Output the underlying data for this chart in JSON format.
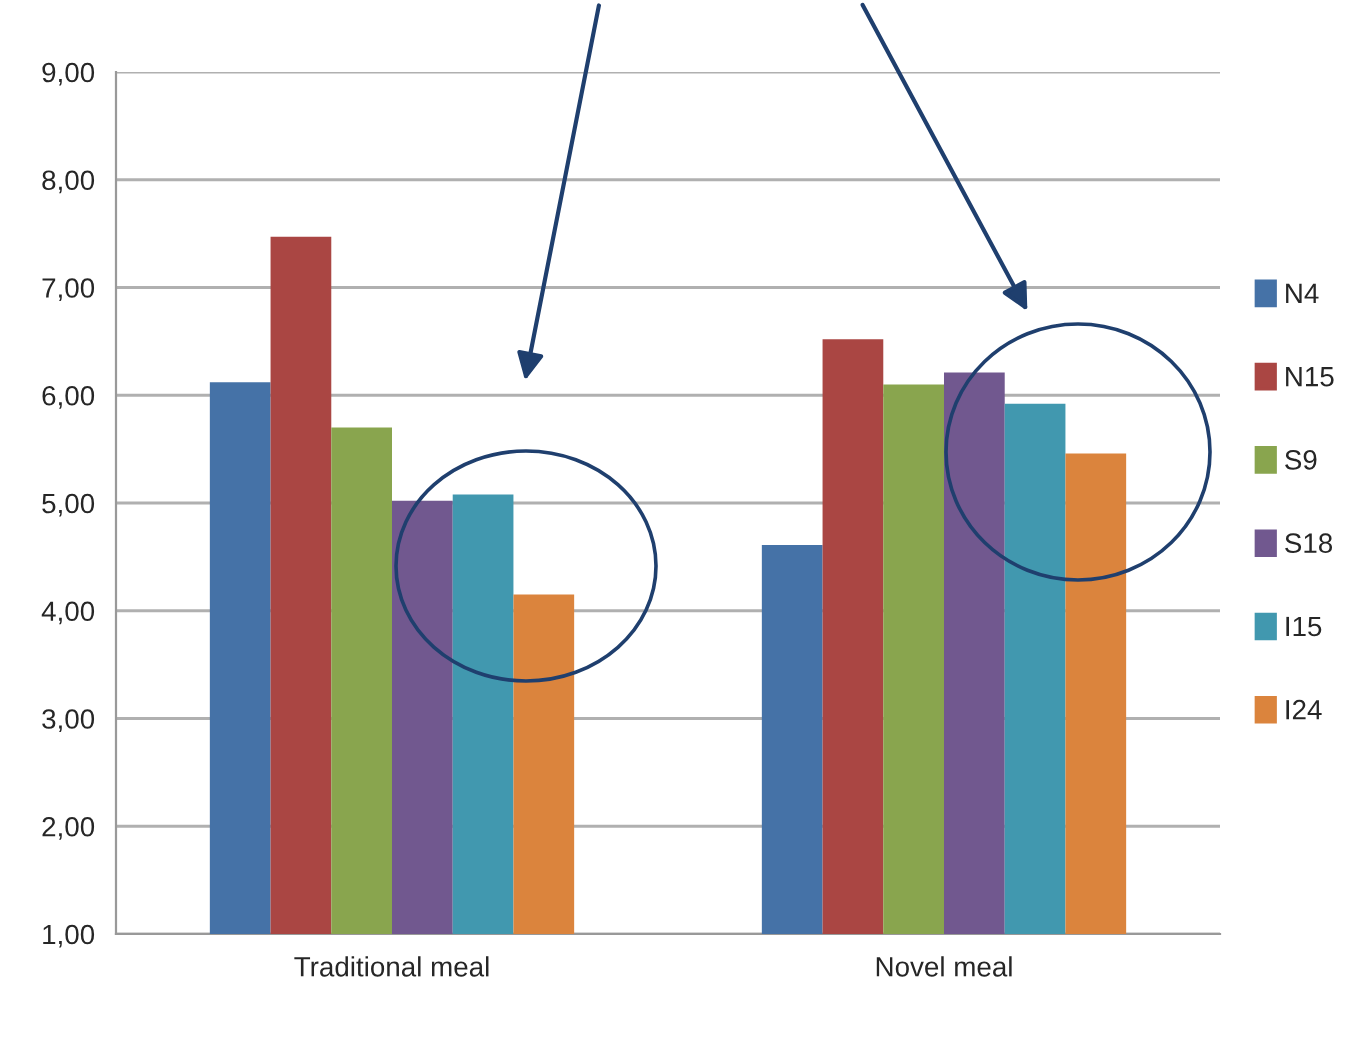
{
  "chart_data": {
    "type": "bar",
    "categories": [
      "Traditional meal",
      "Novel meal"
    ],
    "series": [
      {
        "name": "N4",
        "color": "#4572a7",
        "values": [
          6.12,
          4.61
        ]
      },
      {
        "name": "N15",
        "color": "#aa4643",
        "values": [
          7.47,
          6.52
        ]
      },
      {
        "name": "S9",
        "color": "#89a54e",
        "values": [
          5.7,
          6.1
        ]
      },
      {
        "name": "S18",
        "color": "#71588f",
        "values": [
          5.02,
          6.21
        ]
      },
      {
        "name": "I15",
        "color": "#4198af",
        "values": [
          5.08,
          5.92
        ]
      },
      {
        "name": "I24",
        "color": "#db843d",
        "values": [
          4.15,
          5.46
        ]
      }
    ],
    "ylim": [
      1,
      9
    ],
    "yticks": [
      {
        "value": 1,
        "label": "1,00"
      },
      {
        "value": 2,
        "label": "2,00"
      },
      {
        "value": 3,
        "label": "3,00"
      },
      {
        "value": 4,
        "label": "4,00"
      },
      {
        "value": 5,
        "label": "5,00"
      },
      {
        "value": 6,
        "label": "6,00"
      },
      {
        "value": 7,
        "label": "7,00"
      },
      {
        "value": 8,
        "label": "8,00"
      },
      {
        "value": 9,
        "label": "9,00"
      }
    ],
    "grid": "y",
    "legend": "right"
  }
}
